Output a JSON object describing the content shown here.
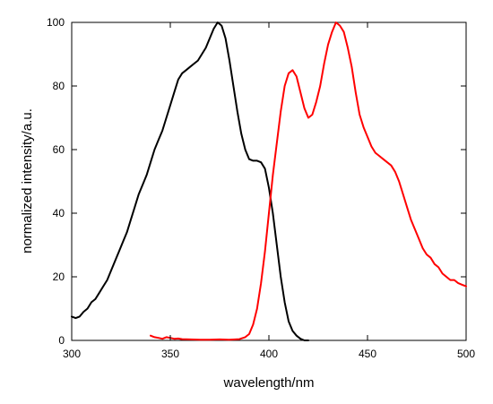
{
  "chart_data": {
    "type": "line",
    "title": "",
    "xlabel": "wavelength/nm",
    "ylabel": "normalized intensity/a.u.",
    "xlim": [
      300,
      500
    ],
    "ylim": [
      0,
      100
    ],
    "x_ticks": [
      300,
      350,
      400,
      450,
      500
    ],
    "y_ticks": [
      0,
      20,
      40,
      60,
      80,
      100
    ],
    "grid": false,
    "legend": "none",
    "series": [
      {
        "color": "#000000",
        "points": [
          [
            300,
            7.5
          ],
          [
            302,
            7
          ],
          [
            304,
            7.5
          ],
          [
            306,
            9
          ],
          [
            308,
            10
          ],
          [
            310,
            12
          ],
          [
            312,
            13
          ],
          [
            314,
            15
          ],
          [
            316,
            17
          ],
          [
            318,
            19
          ],
          [
            320,
            22
          ],
          [
            322,
            25
          ],
          [
            324,
            28
          ],
          [
            326,
            31
          ],
          [
            328,
            34
          ],
          [
            330,
            38
          ],
          [
            332,
            42
          ],
          [
            334,
            46
          ],
          [
            336,
            49
          ],
          [
            338,
            52
          ],
          [
            340,
            56
          ],
          [
            342,
            60
          ],
          [
            344,
            63
          ],
          [
            346,
            66
          ],
          [
            348,
            70
          ],
          [
            350,
            74
          ],
          [
            352,
            78
          ],
          [
            354,
            82
          ],
          [
            356,
            84
          ],
          [
            358,
            85
          ],
          [
            360,
            86
          ],
          [
            362,
            87
          ],
          [
            364,
            88
          ],
          [
            366,
            90
          ],
          [
            368,
            92
          ],
          [
            370,
            95
          ],
          [
            372,
            98
          ],
          [
            374,
            100
          ],
          [
            376,
            99
          ],
          [
            378,
            95
          ],
          [
            380,
            88
          ],
          [
            382,
            80
          ],
          [
            384,
            72
          ],
          [
            386,
            65
          ],
          [
            388,
            60
          ],
          [
            390,
            57
          ],
          [
            392,
            56.5
          ],
          [
            394,
            56.5
          ],
          [
            396,
            56
          ],
          [
            398,
            54
          ],
          [
            400,
            48
          ],
          [
            402,
            40
          ],
          [
            404,
            30
          ],
          [
            406,
            20
          ],
          [
            408,
            12
          ],
          [
            410,
            6
          ],
          [
            412,
            3
          ],
          [
            414,
            1.5
          ],
          [
            416,
            0.5
          ],
          [
            418,
            0
          ],
          [
            420,
            0
          ]
        ]
      },
      {
        "color": "#ff0000",
        "points": [
          [
            340,
            1.5
          ],
          [
            342,
            1
          ],
          [
            344,
            0.8
          ],
          [
            346,
            0.5
          ],
          [
            348,
            1
          ],
          [
            350,
            0.8
          ],
          [
            352,
            0.5
          ],
          [
            354,
            0.6
          ],
          [
            356,
            0.4
          ],
          [
            360,
            0.3
          ],
          [
            365,
            0.2
          ],
          [
            370,
            0.2
          ],
          [
            375,
            0.3
          ],
          [
            380,
            0.2
          ],
          [
            385,
            0.4
          ],
          [
            388,
            1
          ],
          [
            390,
            2
          ],
          [
            392,
            5
          ],
          [
            394,
            10
          ],
          [
            396,
            18
          ],
          [
            398,
            28
          ],
          [
            400,
            40
          ],
          [
            402,
            52
          ],
          [
            404,
            62
          ],
          [
            406,
            72
          ],
          [
            408,
            80
          ],
          [
            410,
            84
          ],
          [
            412,
            85
          ],
          [
            414,
            83
          ],
          [
            416,
            78
          ],
          [
            418,
            73
          ],
          [
            420,
            70
          ],
          [
            422,
            71
          ],
          [
            424,
            75
          ],
          [
            426,
            80
          ],
          [
            428,
            87
          ],
          [
            430,
            93
          ],
          [
            432,
            97
          ],
          [
            434,
            100
          ],
          [
            436,
            99
          ],
          [
            438,
            97
          ],
          [
            440,
            92
          ],
          [
            442,
            86
          ],
          [
            444,
            78
          ],
          [
            446,
            71
          ],
          [
            448,
            67
          ],
          [
            450,
            64
          ],
          [
            452,
            61
          ],
          [
            454,
            59
          ],
          [
            456,
            58
          ],
          [
            458,
            57
          ],
          [
            460,
            56
          ],
          [
            462,
            55
          ],
          [
            464,
            53
          ],
          [
            466,
            50
          ],
          [
            468,
            46
          ],
          [
            470,
            42
          ],
          [
            472,
            38
          ],
          [
            474,
            35
          ],
          [
            476,
            32
          ],
          [
            478,
            29
          ],
          [
            480,
            27
          ],
          [
            482,
            26
          ],
          [
            484,
            24
          ],
          [
            486,
            23
          ],
          [
            488,
            21
          ],
          [
            490,
            20
          ],
          [
            492,
            19
          ],
          [
            494,
            19
          ],
          [
            496,
            18
          ],
          [
            498,
            17.5
          ],
          [
            500,
            17
          ]
        ]
      }
    ]
  }
}
